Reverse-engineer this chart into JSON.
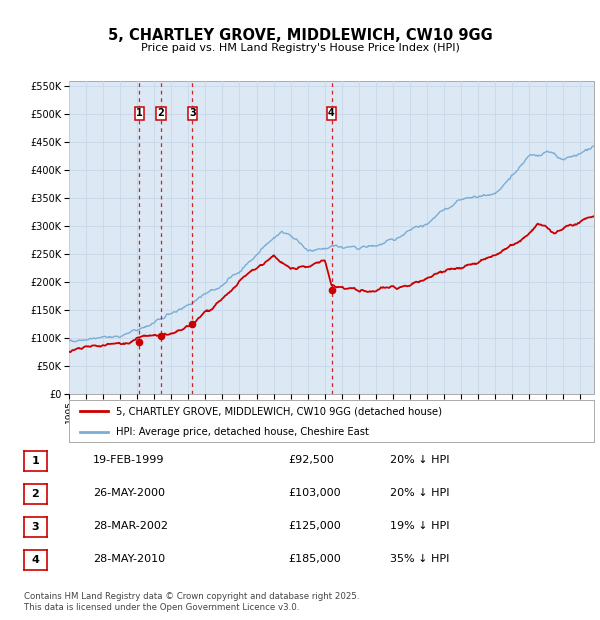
{
  "title": "5, CHARTLEY GROVE, MIDDLEWICH, CW10 9GG",
  "subtitle": "Price paid vs. HM Land Registry's House Price Index (HPI)",
  "background_color": "#ffffff",
  "plot_bg_color": "#dce9f5",
  "grid_color": "#c8d8e8",
  "ylim": [
    0,
    560000
  ],
  "yticks": [
    0,
    50000,
    100000,
    150000,
    200000,
    250000,
    300000,
    350000,
    400000,
    450000,
    500000,
    550000
  ],
  "ytick_labels": [
    "£0",
    "£50K",
    "£100K",
    "£150K",
    "£200K",
    "£250K",
    "£300K",
    "£350K",
    "£400K",
    "£450K",
    "£500K",
    "£550K"
  ],
  "xlim_start": 1995.0,
  "xlim_end": 2025.8,
  "red_line_color": "#cc0000",
  "blue_line_color": "#7aadd4",
  "purchase_markers": [
    {
      "num": 1,
      "year": 1999.13,
      "price": 92500
    },
    {
      "num": 2,
      "year": 2000.4,
      "price": 103000
    },
    {
      "num": 3,
      "year": 2002.24,
      "price": 125000
    },
    {
      "num": 4,
      "year": 2010.4,
      "price": 185000
    }
  ],
  "legend_red_label": "5, CHARTLEY GROVE, MIDDLEWICH, CW10 9GG (detached house)",
  "legend_blue_label": "HPI: Average price, detached house, Cheshire East",
  "footer": "Contains HM Land Registry data © Crown copyright and database right 2025.\nThis data is licensed under the Open Government Licence v3.0.",
  "table_rows": [
    {
      "num": 1,
      "date": "19-FEB-1999",
      "price": "£92,500",
      "pct": "20% ↓ HPI"
    },
    {
      "num": 2,
      "date": "26-MAY-2000",
      "price": "£103,000",
      "pct": "20% ↓ HPI"
    },
    {
      "num": 3,
      "date": "28-MAR-2002",
      "price": "£125,000",
      "pct": "19% ↓ HPI"
    },
    {
      "num": 4,
      "date": "28-MAY-2010",
      "price": "£185,000",
      "pct": "35% ↓ HPI"
    }
  ]
}
